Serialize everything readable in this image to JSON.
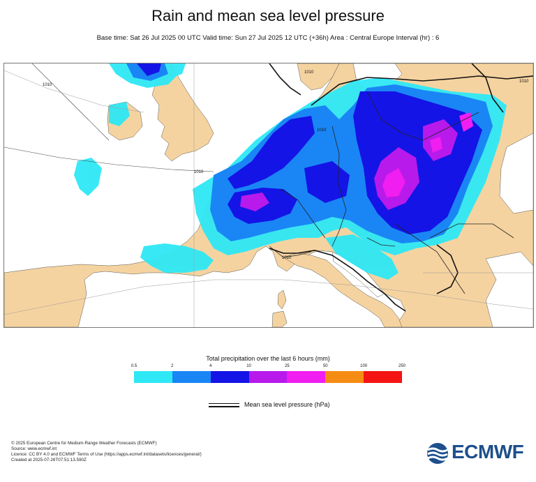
{
  "title": "Rain and mean sea level pressure",
  "subtitle": "Base time: Sat 26 Jul 2025 00 UTC Valid time: Sun 27 Jul 2025 12 UTC (+36h) Area : Central Europe Interval (hr) : 6",
  "map": {
    "isobar_labels": [
      "1010",
      "1010",
      "1010",
      "1010",
      "1010",
      "1010"
    ],
    "colors": {
      "sea": "#ffffff",
      "land": "#f5d3a0",
      "border": "#111111"
    }
  },
  "legend": {
    "title": "Total precipitation over the last 6 hours (mm)",
    "ticks": [
      "0.5",
      "2",
      "4",
      "10",
      "25",
      "50",
      "100",
      "250"
    ],
    "colors": [
      "#2ee8f5",
      "#1a86f5",
      "#1414e6",
      "#b81aeb",
      "#f01ef0",
      "#f58c14",
      "#f51414"
    ]
  },
  "mslp_legend": {
    "label": "Mean sea level pressure (hPa)"
  },
  "footer": {
    "lines": [
      "© 2025 European Centre for Medium-Range Weather Forecasts (ECMWF)",
      "Source: www.ecmwf.int",
      "Licence: CC BY 4.0 and ECMWF Terms of Use (https://apps.ecmwf.int/datasets/licences/general/)",
      "Created at 2025-07-26T07:51:13.590Z"
    ]
  },
  "logo": {
    "text": "ECMWF",
    "color": "#1d4f8c"
  }
}
